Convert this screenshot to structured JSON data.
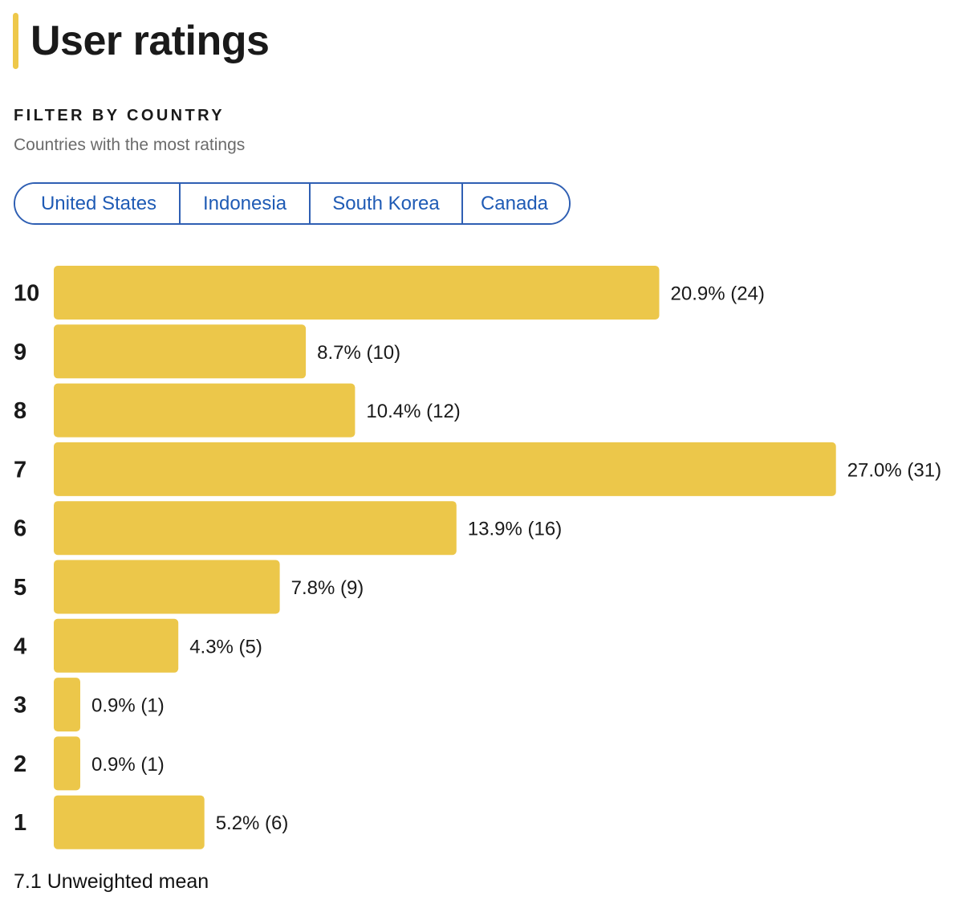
{
  "title": "User ratings",
  "filter": {
    "heading": "FILTER BY COUNTRY",
    "subtitle": "Countries with the most ratings",
    "countries": [
      "United States",
      "Indonesia",
      "South Korea",
      "Canada"
    ]
  },
  "colors": {
    "bar": "#ecc74a",
    "accent": "#eec84a",
    "link": "#1f5bb5"
  },
  "chart_data": {
    "type": "bar",
    "orientation": "horizontal",
    "title": "User ratings",
    "categories": [
      "10",
      "9",
      "8",
      "7",
      "6",
      "5",
      "4",
      "3",
      "2",
      "1"
    ],
    "values": [
      20.9,
      8.7,
      10.4,
      27.0,
      13.9,
      7.8,
      4.3,
      0.9,
      0.9,
      5.2
    ],
    "counts": [
      24,
      10,
      12,
      31,
      16,
      9,
      5,
      1,
      1,
      6
    ],
    "labels": [
      "20.9% (24)",
      "8.7% (10)",
      "10.4% (12)",
      "27.0% (31)",
      "13.9% (16)",
      "7.8% (9)",
      "4.3% (5)",
      "0.9% (1)",
      "0.9% (1)",
      "5.2% (6)"
    ],
    "unit": "%",
    "xlabel": "",
    "ylabel": ""
  },
  "summary": {
    "mean_text": "7.1 Unweighted mean"
  }
}
